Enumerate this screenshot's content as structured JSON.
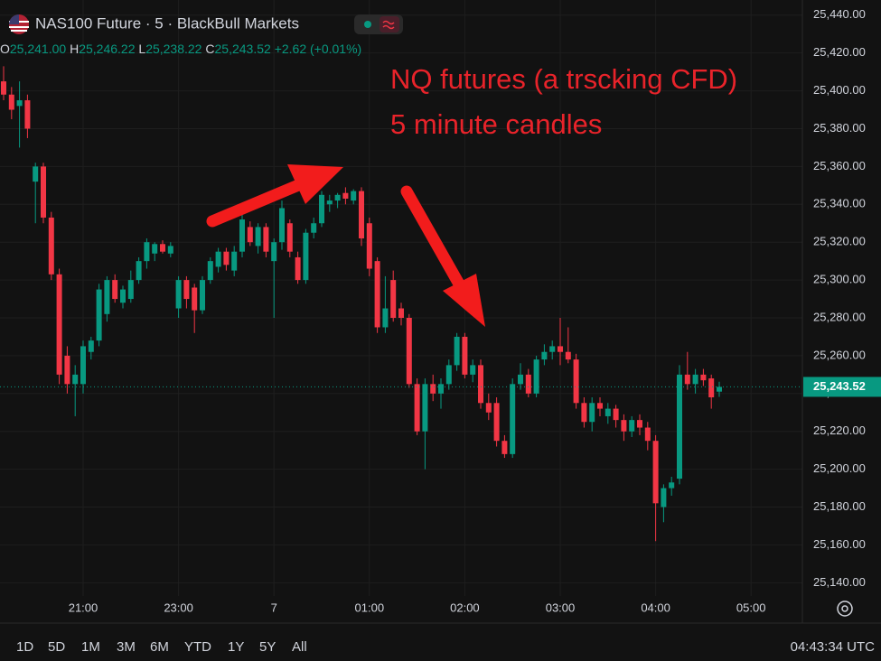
{
  "header": {
    "title": "NAS100 Future · 5 · BlackBull Markets",
    "ohlc": [
      {
        "key": "O",
        "value": "25,241.00"
      },
      {
        "key": "H",
        "value": "25,246.22"
      },
      {
        "key": "L",
        "value": "25,238.22"
      },
      {
        "key": "C",
        "value": "25,243.52"
      }
    ],
    "change": "+2.62 (+0.01%)"
  },
  "annotations": [
    "NQ futures (a trscking CFD)",
    "5 minute candles"
  ],
  "toolbar": {
    "ranges": [
      "1D",
      "5D",
      "1M",
      "3M",
      "6M",
      "YTD",
      "1Y",
      "5Y",
      "All"
    ],
    "clock": "04:43:34 UTC"
  },
  "chart_data": {
    "type": "candlestick",
    "up_color": "#089981",
    "down_color": "#f23645",
    "grid": true,
    "ylim": [
      25133,
      25448
    ],
    "yticks": [
      {
        "value": 25140,
        "label": "25,140.00"
      },
      {
        "value": 25160,
        "label": "25,160.00"
      },
      {
        "value": 25180,
        "label": "25,180.00"
      },
      {
        "value": 25200,
        "label": "25,200.00"
      },
      {
        "value": 25220,
        "label": "25,220.00"
      },
      {
        "value": 25240,
        "label": "25,240.00"
      },
      {
        "value": 25260,
        "label": "25,260.00"
      },
      {
        "value": 25280,
        "label": "25,280.00"
      },
      {
        "value": 25300,
        "label": "25,300.00"
      },
      {
        "value": 25320,
        "label": "25,320.00"
      },
      {
        "value": 25340,
        "label": "25,340.00"
      },
      {
        "value": 25360,
        "label": "25,360.00"
      },
      {
        "value": 25380,
        "label": "25,380.00"
      },
      {
        "value": 25400,
        "label": "25,400.00"
      },
      {
        "value": 25420,
        "label": "25,420.00"
      },
      {
        "value": 25440,
        "label": "25,440.00"
      }
    ],
    "last_price": {
      "value": 25243.52,
      "label": "25,243.52"
    },
    "categories": [
      null,
      null,
      null,
      null,
      null,
      null,
      null,
      null,
      null,
      null,
      "21:00",
      null,
      null,
      null,
      null,
      null,
      null,
      null,
      null,
      null,
      null,
      null,
      "23:00",
      null,
      null,
      null,
      null,
      null,
      null,
      null,
      null,
      null,
      null,
      null,
      "7",
      null,
      null,
      null,
      null,
      null,
      null,
      null,
      null,
      null,
      null,
      null,
      "01:00",
      null,
      null,
      null,
      null,
      null,
      null,
      null,
      null,
      null,
      null,
      null,
      "02:00",
      null,
      null,
      null,
      null,
      null,
      null,
      null,
      null,
      null,
      null,
      null,
      "03:00",
      null,
      null,
      null,
      null,
      null,
      null,
      null,
      null,
      null,
      null,
      null,
      "04:00",
      null,
      null,
      null,
      null,
      null,
      null,
      null,
      null,
      null,
      null,
      null,
      "05:00"
    ],
    "open": [
      25405,
      25398,
      25392,
      25395,
      25352,
      25360,
      25333,
      25303,
      25260,
      25245,
      25245,
      25262,
      25268,
      25282,
      25300,
      25288,
      25290,
      25300,
      25310,
      25314,
      25319,
      25314,
      25285,
      25300,
      25296,
      25284,
      25300,
      25307,
      25315,
      25305,
      25315,
      25328,
      25318,
      25328,
      25310,
      25320,
      25330,
      25312,
      25300,
      25325,
      25330,
      25340,
      25342,
      25346,
      25342,
      25347,
      25330,
      25310,
      25275,
      25300,
      25285,
      25280,
      25245,
      25220,
      25245,
      25240,
      25245,
      25255,
      25270,
      25250,
      25255,
      25235,
      25235,
      25215,
      25208,
      25245,
      25250,
      25240,
      25258,
      25262,
      25265,
      25262,
      25258,
      25235,
      25225,
      25235,
      25228,
      25232,
      25226,
      25220,
      25226,
      25222,
      25215,
      25180,
      25190,
      25195,
      25250,
      25245,
      25250,
      25248,
      25241.0,
      null,
      null,
      null,
      null
    ],
    "high": [
      25413,
      25402,
      25405,
      25398,
      25362,
      25362,
      25336,
      25306,
      25265,
      25255,
      25268,
      25270,
      25298,
      25302,
      25303,
      25297,
      25305,
      25312,
      25322,
      25320,
      25321,
      25320,
      25302,
      25302,
      25298,
      25302,
      25312,
      25317,
      25317,
      25318,
      25335,
      25331,
      25330,
      25330,
      25322,
      25342,
      25332,
      25315,
      25327,
      25333,
      25347,
      25345,
      25346,
      25349,
      25348,
      25349,
      25333,
      25312,
      25302,
      25305,
      25288,
      25282,
      25248,
      25248,
      25250,
      25248,
      25258,
      25272,
      25272,
      25258,
      25258,
      25240,
      25238,
      25218,
      25248,
      25256,
      25253,
      25260,
      25266,
      25268,
      25280,
      25275,
      25261,
      25238,
      25238,
      25238,
      25235,
      25234,
      25229,
      25228,
      25229,
      25225,
      25218,
      25192,
      25196,
      25255,
      25262,
      25253,
      25253,
      25250,
      25246.22,
      null,
      null,
      null,
      null
    ],
    "low": [
      25395,
      25385,
      25370,
      25375,
      25330,
      25330,
      25300,
      25245,
      25240,
      25228,
      25240,
      25258,
      25265,
      25278,
      25288,
      25285,
      25288,
      25298,
      25306,
      25310,
      25314,
      25312,
      25280,
      25285,
      25272,
      25282,
      25298,
      25304,
      25305,
      25302,
      25312,
      25318,
      25314,
      25312,
      25280,
      25316,
      25312,
      25298,
      25298,
      25322,
      25328,
      25336,
      25338,
      25340,
      25340,
      25318,
      25302,
      25272,
      25272,
      25278,
      25276,
      25243,
      25218,
      25200,
      25236,
      25232,
      25242,
      25252,
      25248,
      25246,
      25232,
      25226,
      25212,
      25206,
      25206,
      25242,
      25238,
      25238,
      25255,
      25258,
      25255,
      25256,
      25232,
      25222,
      25220,
      25228,
      25224,
      25222,
      25215,
      25217,
      25218,
      25210,
      25162,
      25172,
      25186,
      25192,
      25242,
      25240,
      25244,
      25232,
      25238.22,
      null,
      null,
      null,
      null
    ],
    "close": [
      25398,
      25390,
      25395,
      25380,
      25360,
      25333,
      25303,
      25250,
      25245,
      25250,
      25265,
      25268,
      25295,
      25300,
      25290,
      25295,
      25300,
      25310,
      25320,
      25319,
      25315,
      25318,
      25300,
      25290,
      25284,
      25300,
      25310,
      25315,
      25308,
      25315,
      25332,
      25320,
      25328,
      25315,
      25320,
      25338,
      25315,
      25300,
      25325,
      25330,
      25345,
      25342,
      25345,
      25343,
      25347,
      25322,
      25306,
      25275,
      25285,
      25280,
      25280,
      25245,
      25220,
      25245,
      25240,
      25245,
      25255,
      25270,
      25250,
      25255,
      25235,
      25230,
      25215,
      25208,
      25245,
      25250,
      25240,
      25258,
      25262,
      25265,
      25262,
      25258,
      25235,
      25225,
      25235,
      25232,
      25232,
      25226,
      25220,
      25226,
      25222,
      25215,
      25182,
      25190,
      25193,
      25250,
      25245,
      25250,
      25247,
      25238,
      25243.52,
      null,
      null,
      null,
      null
    ]
  }
}
